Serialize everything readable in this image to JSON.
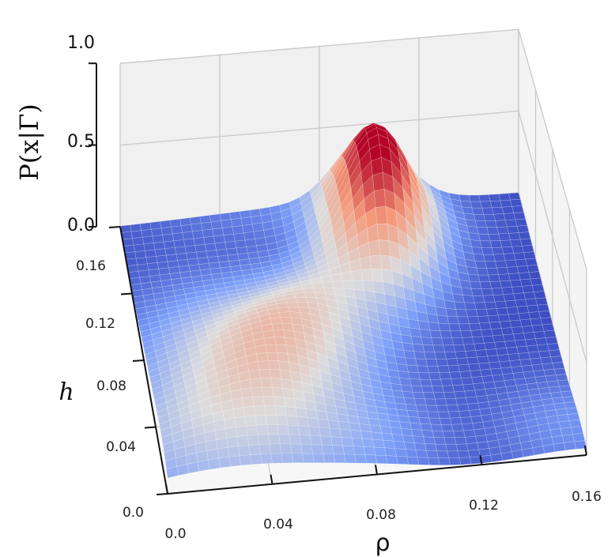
{
  "chart_data": {
    "type": "surface3d",
    "zlabel": "P(x|Γ)",
    "xlabel": "ρ",
    "ylabel": "h",
    "xlim": [
      0.0,
      0.16
    ],
    "ylim": [
      0.0,
      0.16
    ],
    "zlim": [
      0.0,
      1.0
    ],
    "x_ticks": [
      "0.0",
      "0.04",
      "0.08",
      "0.12",
      "0.16"
    ],
    "y_ticks": [
      "0.0",
      "0.04",
      "0.08",
      "0.12",
      "0.16"
    ],
    "z_ticks": [
      "0.0",
      "0.5",
      "1.0"
    ],
    "colormap": "coolwarm",
    "grid": true,
    "peaks": [
      {
        "rho": 0.1,
        "h": 0.14,
        "height": 0.58
      },
      {
        "rho": 0.04,
        "h": 0.07,
        "height": 0.16
      },
      {
        "rho": 0.03,
        "h": 0.025,
        "height": 0.1
      }
    ]
  }
}
